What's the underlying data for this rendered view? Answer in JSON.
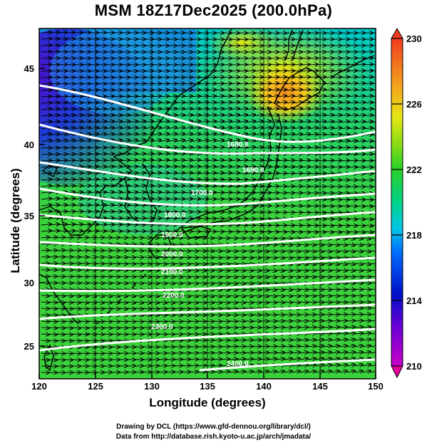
{
  "title": "MSM 18Z17Dec2025 (200.0hPa)",
  "x_axis": {
    "label": "Longitude (degrees)",
    "ticks": [
      "120",
      "125",
      "130",
      "135",
      "140",
      "145",
      "150"
    ]
  },
  "y_axis": {
    "label": "Latitude  (degrees)",
    "ticks": [
      "25",
      "30",
      "35",
      "40",
      "45"
    ]
  },
  "colorbar": {
    "ticks": [
      "210",
      "214",
      "218",
      "222",
      "226",
      "230"
    ],
    "min": 210,
    "max": 230
  },
  "contour_labels": [
    "1680.0",
    "1690.0",
    "1700.0",
    "1800.0",
    "1900.0",
    "2000.0",
    "2100.0",
    "2200.0",
    "2300.0",
    "2400.0"
  ],
  "credits": {
    "line1": "Drawing by DCL (https://www.gfd-dennou.org/library/dcl/)",
    "line2": "Data from http://database.rish.kyoto-u.ac.jp/arch/jmadata/"
  },
  "colors": {
    "land": "#000000",
    "contour": "#ffffff",
    "vector": "#000000"
  }
}
